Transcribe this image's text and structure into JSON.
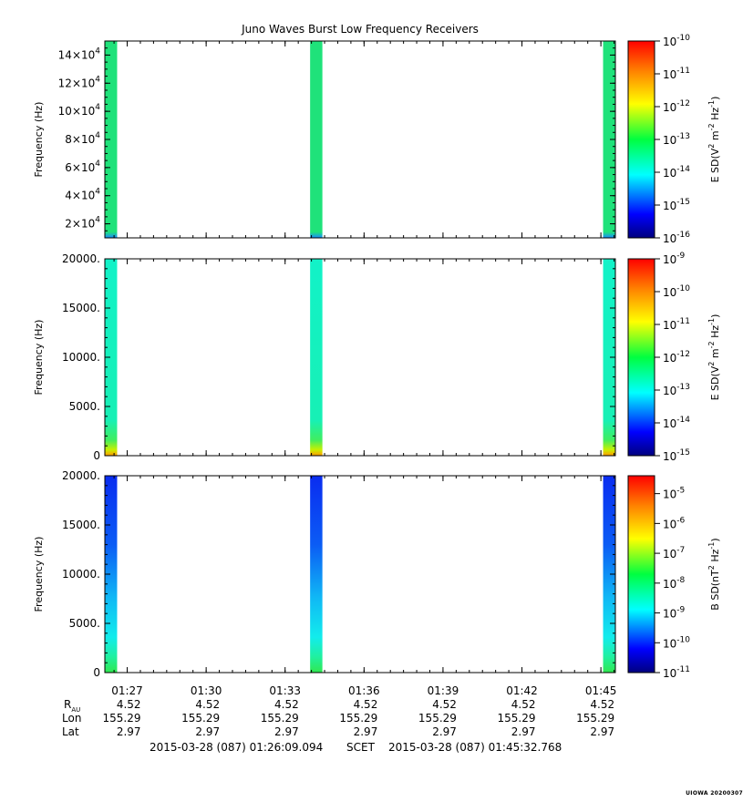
{
  "title": "Juno Waves Burst Low Frequency Receivers",
  "footer": {
    "start": "2015-03-28 (087) 01:26:09.094",
    "frame": "SCET",
    "end": "2015-03-28 (087) 01:45:32.768"
  },
  "stamp": "UIOWA 20200307",
  "ephemeris": {
    "row_labels": [
      "R",
      "Lon",
      "Lat"
    ],
    "r_subscript": "AU",
    "r": "4.52",
    "lon": "155.29",
    "lat": "2.97"
  },
  "chart_data": [
    {
      "type": "heatmap",
      "title": "Juno Waves Burst Low Frequency Receivers",
      "ylabel": "Frequency (Hz)",
      "y_ticks": [
        "2×10^4",
        "4×10^4",
        "6×10^4",
        "8×10^4",
        "10×10^4",
        "12×10^4",
        "14×10^4"
      ],
      "ylim": [
        10000,
        150000
      ],
      "colorbar_label": "E SD(V^2 m^-2 Hz^-1)",
      "colorbar_ticks": [
        "10^-10",
        "10^-11",
        "10^-12",
        "10^-13",
        "10^-14",
        "10^-15",
        "10^-16"
      ],
      "colorbar_range": [
        -16,
        -10
      ],
      "bursts": [
        {
          "start": "01:26:09",
          "end": "01:26:37"
        },
        {
          "start": "01:33:57",
          "end": "01:34:25"
        },
        {
          "start": "01:45:05",
          "end": "01:45:32"
        }
      ],
      "dominant_level": "10^-13.6"
    },
    {
      "type": "heatmap",
      "ylabel": "Frequency (Hz)",
      "y_ticks": [
        "0",
        "5000.",
        "10000.",
        "15000.",
        "20000."
      ],
      "ylim": [
        0,
        20000
      ],
      "colorbar_label": "E SD(V^2 m^-2 Hz^-1)",
      "colorbar_ticks": [
        "10^-9",
        "10^-10",
        "10^-11",
        "10^-12",
        "10^-13",
        "10^-14",
        "10^-15"
      ],
      "colorbar_range": [
        -15,
        -9
      ],
      "bursts": [
        {
          "start": "01:26:09",
          "end": "01:26:37"
        },
        {
          "start": "01:33:57",
          "end": "01:34:25"
        },
        {
          "start": "01:45:05",
          "end": "01:45:32"
        }
      ],
      "dominant_level": "10^-13.3"
    },
    {
      "type": "heatmap",
      "ylabel": "Frequency (Hz)",
      "y_ticks": [
        "0",
        "5000.",
        "10000.",
        "15000.",
        "20000."
      ],
      "ylim": [
        0,
        20000
      ],
      "colorbar_label": "B SD(nT^2 Hz^-1)",
      "colorbar_ticks": [
        "10^-5",
        "10^-6",
        "10^-7",
        "10^-8",
        "10^-9",
        "10^-10",
        "10^-11"
      ],
      "colorbar_range": [
        -11,
        -4.4
      ],
      "bursts": [
        {
          "start": "01:26:09",
          "end": "01:26:37"
        },
        {
          "start": "01:33:57",
          "end": "01:34:25"
        },
        {
          "start": "01:45:05",
          "end": "01:45:32"
        }
      ],
      "dominant_level": "10^-10.2",
      "x_ticks": [
        "01:27",
        "01:30",
        "01:33",
        "01:36",
        "01:39",
        "01:42",
        "01:45"
      ],
      "xlim": [
        "01:26:09",
        "01:45:33"
      ]
    }
  ]
}
